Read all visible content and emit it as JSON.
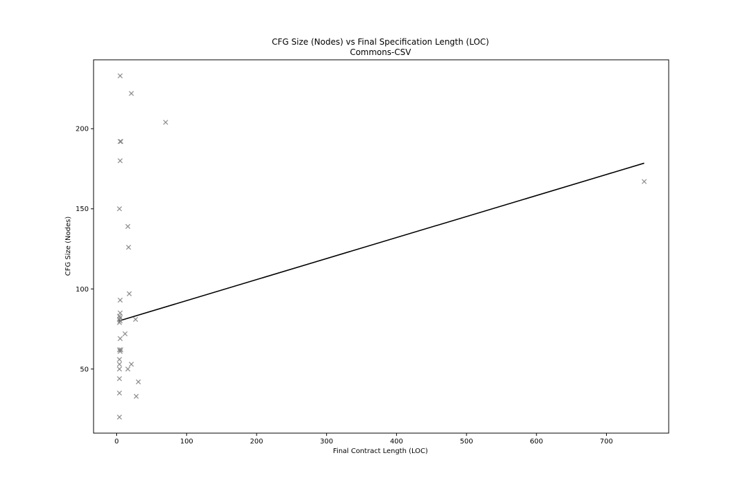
{
  "chart_data": {
    "type": "scatter",
    "title": "CFG Size (Nodes) vs Final Specification Length (LOC)",
    "subtitle": "Commons-CSV",
    "xlabel": "Final Contract Length (LOC)",
    "ylabel": "CFG Size (Nodes)",
    "xlim": [
      -33,
      789
    ],
    "ylim": [
      10,
      243
    ],
    "xticks": [
      0,
      100,
      200,
      300,
      400,
      500,
      600,
      700
    ],
    "yticks": [
      50,
      100,
      150,
      200
    ],
    "grid": false,
    "marker": "x",
    "marker_color": "#7f7f7f",
    "line_color": "#000000",
    "points": [
      {
        "x": 5,
        "y": 233
      },
      {
        "x": 21,
        "y": 222
      },
      {
        "x": 70,
        "y": 204
      },
      {
        "x": 5,
        "y": 192
      },
      {
        "x": 6,
        "y": 192
      },
      {
        "x": 5,
        "y": 180
      },
      {
        "x": 4,
        "y": 150
      },
      {
        "x": 16,
        "y": 139
      },
      {
        "x": 17,
        "y": 126
      },
      {
        "x": 18,
        "y": 97
      },
      {
        "x": 5,
        "y": 93
      },
      {
        "x": 5,
        "y": 85
      },
      {
        "x": 4,
        "y": 83
      },
      {
        "x": 5,
        "y": 82
      },
      {
        "x": 4,
        "y": 81
      },
      {
        "x": 5,
        "y": 80
      },
      {
        "x": 4,
        "y": 79
      },
      {
        "x": 27,
        "y": 81
      },
      {
        "x": 12,
        "y": 72
      },
      {
        "x": 5,
        "y": 69
      },
      {
        "x": 4,
        "y": 62
      },
      {
        "x": 5,
        "y": 61
      },
      {
        "x": 6,
        "y": 62
      },
      {
        "x": 4,
        "y": 56
      },
      {
        "x": 4,
        "y": 53
      },
      {
        "x": 21,
        "y": 53
      },
      {
        "x": 4,
        "y": 50
      },
      {
        "x": 16,
        "y": 50
      },
      {
        "x": 4,
        "y": 44
      },
      {
        "x": 31,
        "y": 42
      },
      {
        "x": 4,
        "y": 35
      },
      {
        "x": 28,
        "y": 33
      },
      {
        "x": 4,
        "y": 20
      },
      {
        "x": 754,
        "y": 167
      }
    ],
    "trend_line": {
      "x": [
        3,
        754
      ],
      "y": [
        80,
        178.5
      ]
    }
  }
}
